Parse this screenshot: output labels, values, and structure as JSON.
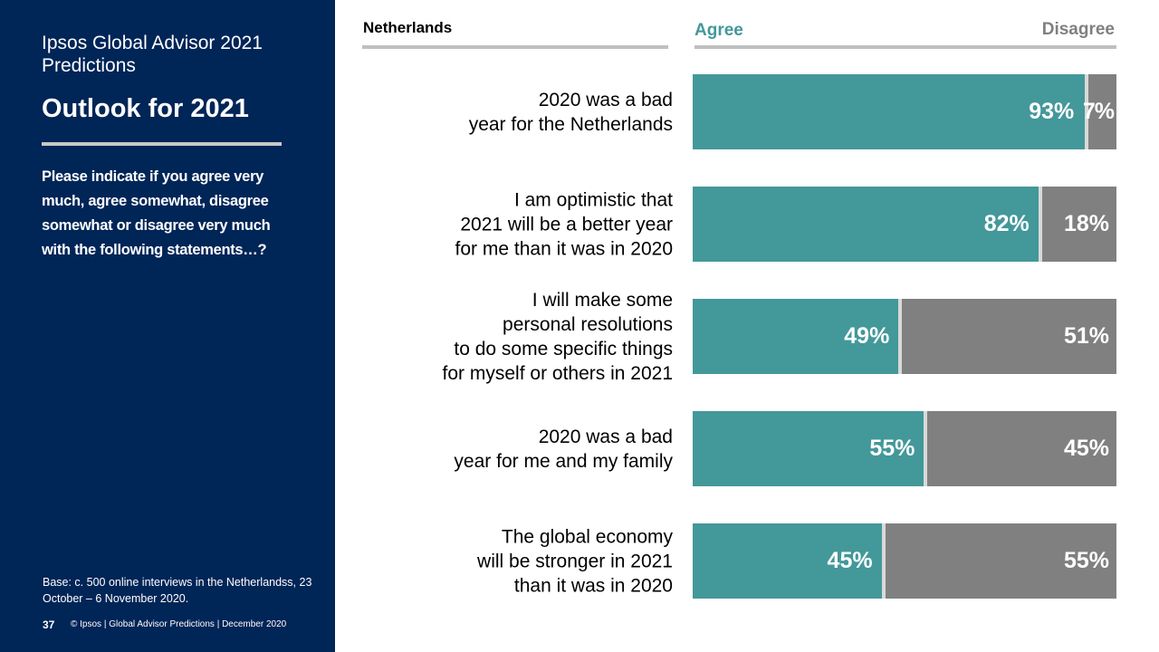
{
  "sidebar": {
    "title": "Ipsos Global Advisor 2021 Predictions",
    "subtitle": "Outlook for 2021",
    "question": "Please indicate if you agree very much, agree somewhat, disagree somewhat or disagree very much with the following statements…?",
    "base": "Base: c. 500 online interviews in the Netherlandss,  23 October – 6 November 2020.",
    "page_number": "37",
    "footer": "© Ipsos | Global Advisor Predictions | December 2020"
  },
  "colors": {
    "sidebar": "#002557",
    "agree": "#43989a",
    "disagree": "#808080"
  },
  "chart_data": {
    "type": "bar",
    "stacked": true,
    "orientation": "horizontal",
    "title": "Netherlands",
    "categories": [
      "2020 was a bad\nyear for the Netherlands",
      "I am optimistic that\n2021 will be a better year\nfor me than it was in 2020",
      "I will make some\npersonal resolutions\nto do some specific things\nfor myself or others in 2021",
      "2020 was a bad\nyear for me and my family",
      "The global economy\nwill be stronger in 2021\nthan it was in 2020"
    ],
    "series": [
      {
        "name": "Agree",
        "values": [
          93,
          82,
          49,
          55,
          45
        ],
        "color": "#43989a"
      },
      {
        "name": "Disagree",
        "values": [
          7,
          18,
          51,
          45,
          55
        ],
        "color": "#808080"
      }
    ],
    "unit": "%",
    "xlim": [
      0,
      100
    ],
    "legend": "top"
  }
}
